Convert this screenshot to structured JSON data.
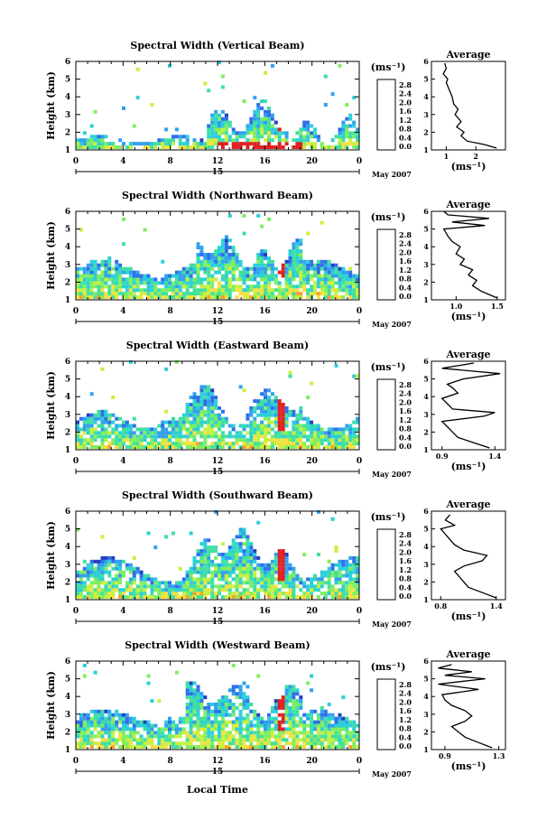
{
  "figure": {
    "xlabel": "Local Time",
    "date_label": "May 2007",
    "day_label": "15",
    "colorbar_label": "(ms⁻¹)",
    "avg_title": "Average",
    "avg_xlabel": "(ms⁻¹)",
    "height_label": "Height (km)"
  },
  "colors": {
    "colormap": [
      "#1a1a6e",
      "#2040c0",
      "#2f6fe8",
      "#32a0ee",
      "#2ccfd8",
      "#40e0a0",
      "#80ee60",
      "#c8f040",
      "#f8e040",
      "#f8a030",
      "#f06030",
      "#e02020"
    ]
  },
  "chart_data": [
    {
      "type": "heatmap",
      "title": "Spectral Width (Vertical Beam)",
      "ylabel": "Height (km)",
      "xlabel": "",
      "x_ticks": [
        "0",
        "4",
        "8",
        "12",
        "16",
        "20",
        "0"
      ],
      "y_ticks": [
        "1",
        "2",
        "3",
        "4",
        "5",
        "6"
      ],
      "xlim": [
        0,
        24
      ],
      "ylim": [
        1,
        6
      ],
      "colorbar": {
        "ticks": [
          "2.8",
          "2.4",
          "2.0",
          "1.6",
          "1.2",
          "0.8",
          "0.4",
          "0.0"
        ],
        "range": [
          0,
          2.8
        ]
      },
      "average_profile": {
        "title": "Average",
        "xlabel": "(ms⁻¹)",
        "x_ticks": [
          "1",
          "2"
        ],
        "xlim": [
          0.5,
          3.0
        ],
        "y_ticks": [
          "1",
          "2",
          "3",
          "4",
          "5",
          "6"
        ],
        "heights": [
          1.1,
          1.3,
          1.5,
          1.8,
          2.0,
          2.3,
          2.6,
          3.0,
          3.3,
          3.6,
          4.0,
          4.4,
          4.8,
          5.0,
          5.3,
          5.6,
          5.9
        ],
        "values": [
          2.7,
          2.3,
          1.7,
          1.5,
          1.6,
          1.35,
          1.5,
          1.3,
          1.4,
          1.25,
          1.2,
          1.1,
          1.0,
          1.05,
          0.9,
          1.0,
          0.95
        ]
      }
    },
    {
      "type": "heatmap",
      "title": "Spectral Width (Northward Beam)",
      "ylabel": "Height (km)",
      "xlabel": "",
      "x_ticks": [
        "0",
        "4",
        "8",
        "12",
        "16",
        "20",
        "0"
      ],
      "y_ticks": [
        "1",
        "2",
        "3",
        "4",
        "5",
        "6"
      ],
      "xlim": [
        0,
        24
      ],
      "ylim": [
        1,
        6
      ],
      "colorbar": {
        "ticks": [
          "2.8",
          "2.4",
          "2.0",
          "1.6",
          "1.2",
          "0.8",
          "0.4",
          "0.0"
        ],
        "range": [
          0,
          2.8
        ]
      },
      "average_profile": {
        "title": "Average",
        "xlabel": "(ms⁻¹)",
        "x_ticks": [
          "1.0",
          "1.5"
        ],
        "xlim": [
          0.7,
          1.6
        ],
        "y_ticks": [
          "1",
          "2",
          "3",
          "4",
          "5",
          "6"
        ],
        "heights": [
          1.1,
          1.3,
          1.5,
          1.8,
          2.1,
          2.4,
          2.7,
          3.0,
          3.3,
          3.6,
          4.0,
          4.3,
          4.6,
          5.0,
          5.2,
          5.4,
          5.6,
          5.8,
          6.0
        ],
        "values": [
          1.5,
          1.4,
          1.3,
          1.2,
          1.25,
          1.15,
          1.2,
          1.05,
          1.1,
          1.0,
          1.05,
          0.95,
          0.9,
          0.85,
          1.35,
          0.95,
          1.4,
          0.9,
          0.85
        ]
      }
    },
    {
      "type": "heatmap",
      "title": "Spectral Width (Eastward Beam)",
      "ylabel": "Height (km)",
      "xlabel": "",
      "x_ticks": [
        "0",
        "4",
        "8",
        "12",
        "16",
        "20",
        "0"
      ],
      "y_ticks": [
        "1",
        "2",
        "3",
        "4",
        "5",
        "6"
      ],
      "xlim": [
        0,
        24
      ],
      "ylim": [
        1,
        6
      ],
      "colorbar": {
        "ticks": [
          "2.8",
          "2.4",
          "2.0",
          "1.6",
          "1.2",
          "0.8",
          "0.4",
          "0.0"
        ],
        "range": [
          0,
          2.8
        ]
      },
      "average_profile": {
        "title": "Average",
        "xlabel": "(ms⁻¹)",
        "x_ticks": [
          "0.9",
          "1.4"
        ],
        "xlim": [
          0.8,
          1.5
        ],
        "y_ticks": [
          "1",
          "2",
          "3",
          "4",
          "5",
          "6"
        ],
        "heights": [
          1.1,
          1.4,
          1.7,
          2.0,
          2.3,
          2.6,
          2.9,
          3.1,
          3.3,
          3.6,
          3.9,
          4.2,
          4.5,
          4.7,
          5.0,
          5.3,
          5.6,
          5.9
        ],
        "values": [
          1.35,
          1.2,
          1.05,
          1.0,
          0.95,
          0.9,
          1.3,
          1.4,
          1.0,
          0.95,
          0.9,
          1.05,
          1.0,
          0.95,
          1.1,
          1.45,
          0.9,
          1.2
        ]
      }
    },
    {
      "type": "heatmap",
      "title": "Spectral Width (Southward Beam)",
      "ylabel": "Height (km)",
      "xlabel": "",
      "x_ticks": [
        "0",
        "4",
        "8",
        "12",
        "16",
        "20",
        "0"
      ],
      "y_ticks": [
        "1",
        "2",
        "3",
        "4",
        "5",
        "6"
      ],
      "xlim": [
        0,
        24
      ],
      "ylim": [
        1,
        6
      ],
      "colorbar": {
        "ticks": [
          "2.8",
          "2.4",
          "2.0",
          "1.6",
          "1.2",
          "0.8",
          "0.4",
          "0.0"
        ],
        "range": [
          0,
          2.8
        ]
      },
      "average_profile": {
        "title": "Average",
        "xlabel": "(ms⁻¹)",
        "x_ticks": [
          "0.8",
          "1.4"
        ],
        "xlim": [
          0.7,
          1.5
        ],
        "y_ticks": [
          "1",
          "2",
          "3",
          "4",
          "5",
          "6"
        ],
        "heights": [
          1.1,
          1.4,
          1.7,
          2.0,
          2.3,
          2.6,
          2.9,
          3.2,
          3.5,
          3.8,
          4.1,
          4.4,
          4.7,
          5.0,
          5.2,
          5.5,
          5.8
        ],
        "values": [
          1.4,
          1.25,
          1.1,
          1.05,
          1.0,
          0.95,
          1.05,
          1.25,
          1.3,
          1.05,
          0.95,
          0.9,
          0.85,
          0.8,
          0.95,
          0.85,
          0.9
        ]
      }
    },
    {
      "type": "heatmap",
      "title": "Spectral Width (Westward Beam)",
      "ylabel": "Height (km)",
      "xlabel": "Local Time",
      "x_ticks": [
        "0",
        "4",
        "8",
        "12",
        "16",
        "20",
        "0"
      ],
      "y_ticks": [
        "1",
        "2",
        "3",
        "4",
        "5",
        "6"
      ],
      "xlim": [
        0,
        24
      ],
      "ylim": [
        1,
        6
      ],
      "colorbar": {
        "ticks": [
          "2.8",
          "2.4",
          "2.0",
          "1.6",
          "1.2",
          "0.8",
          "0.4",
          "0.0"
        ],
        "range": [
          0,
          2.8
        ]
      },
      "average_profile": {
        "title": "Average",
        "xlabel": "(ms⁻¹)",
        "x_ticks": [
          "0.9",
          "1.3"
        ],
        "xlim": [
          0.8,
          1.35
        ],
        "y_ticks": [
          "1",
          "2",
          "3",
          "4",
          "5",
          "6"
        ],
        "heights": [
          1.1,
          1.4,
          1.7,
          2.0,
          2.3,
          2.6,
          2.9,
          3.2,
          3.5,
          3.8,
          4.1,
          4.4,
          4.7,
          5.0,
          5.2,
          5.4,
          5.6,
          5.8
        ],
        "values": [
          1.25,
          1.15,
          1.05,
          1.0,
          0.95,
          1.05,
          1.1,
          1.05,
          0.95,
          0.9,
          0.88,
          1.15,
          0.85,
          1.2,
          0.9,
          1.1,
          0.85,
          0.95
        ]
      }
    }
  ]
}
